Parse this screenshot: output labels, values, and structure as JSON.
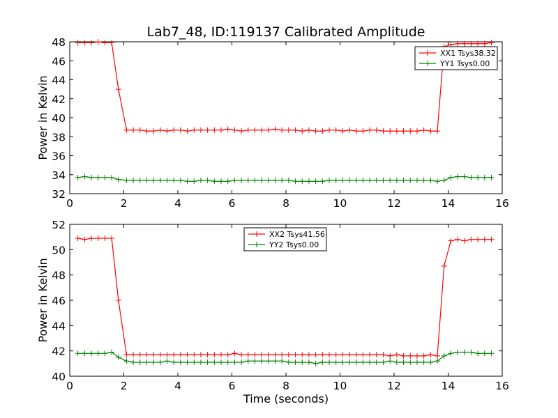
{
  "title": "Lab7_48, ID:119137 Calibrated Amplitude",
  "colors": {
    "red": "#ff0000",
    "green": "#008000",
    "axes": "#000000"
  },
  "chart_data": [
    {
      "type": "line",
      "title": "Lab7_48, ID:119137 Calibrated Amplitude",
      "xlabel": "",
      "ylabel": "Power in Kelvin",
      "xlim": [
        0,
        16
      ],
      "ylim": [
        32,
        48
      ],
      "xticks": [
        0,
        2,
        4,
        6,
        8,
        10,
        12,
        14,
        16
      ],
      "yticks": [
        32,
        34,
        36,
        38,
        40,
        42,
        44,
        46,
        48
      ],
      "grid": false,
      "legend_position": "top-right",
      "marker": "+",
      "x": [
        0.3,
        0.55,
        0.8,
        1.05,
        1.3,
        1.55,
        1.8,
        2.1,
        2.35,
        2.6,
        2.85,
        3.1,
        3.35,
        3.6,
        3.85,
        4.1,
        4.35,
        4.6,
        4.85,
        5.1,
        5.35,
        5.6,
        5.85,
        6.1,
        6.35,
        6.6,
        6.85,
        7.1,
        7.35,
        7.6,
        7.85,
        8.1,
        8.35,
        8.6,
        8.85,
        9.1,
        9.35,
        9.6,
        9.85,
        10.1,
        10.35,
        10.6,
        10.85,
        11.1,
        11.35,
        11.6,
        11.85,
        12.1,
        12.35,
        12.6,
        12.85,
        13.1,
        13.35,
        13.6,
        13.85,
        14.1,
        14.35,
        14.6,
        14.85,
        15.1,
        15.35,
        15.6
      ],
      "series": [
        {
          "name": "XX1 Tsys38.32",
          "color": "#ff0000",
          "values": [
            47.9,
            47.9,
            47.9,
            48.0,
            47.9,
            47.9,
            43.0,
            38.7,
            38.7,
            38.7,
            38.6,
            38.6,
            38.7,
            38.6,
            38.7,
            38.7,
            38.6,
            38.7,
            38.7,
            38.7,
            38.7,
            38.7,
            38.8,
            38.7,
            38.6,
            38.7,
            38.7,
            38.7,
            38.7,
            38.8,
            38.7,
            38.7,
            38.7,
            38.6,
            38.7,
            38.6,
            38.6,
            38.7,
            38.7,
            38.6,
            38.7,
            38.6,
            38.6,
            38.7,
            38.7,
            38.6,
            38.6,
            38.6,
            38.6,
            38.6,
            38.6,
            38.7,
            38.6,
            38.6,
            47.5,
            47.7,
            47.8,
            47.8,
            47.8,
            47.8,
            47.8,
            47.9
          ]
        },
        {
          "name": "YY1 Tsys0.00",
          "color": "#008000",
          "values": [
            33.7,
            33.8,
            33.7,
            33.7,
            33.7,
            33.7,
            33.5,
            33.4,
            33.4,
            33.4,
            33.4,
            33.4,
            33.4,
            33.4,
            33.4,
            33.4,
            33.3,
            33.3,
            33.4,
            33.4,
            33.3,
            33.3,
            33.3,
            33.4,
            33.4,
            33.4,
            33.4,
            33.4,
            33.4,
            33.4,
            33.4,
            33.4,
            33.3,
            33.3,
            33.3,
            33.3,
            33.3,
            33.4,
            33.4,
            33.4,
            33.4,
            33.4,
            33.4,
            33.4,
            33.4,
            33.4,
            33.4,
            33.4,
            33.4,
            33.4,
            33.4,
            33.4,
            33.4,
            33.3,
            33.4,
            33.7,
            33.8,
            33.8,
            33.7,
            33.7,
            33.7,
            33.7
          ]
        }
      ]
    },
    {
      "type": "line",
      "title": "",
      "xlabel": "Time (seconds)",
      "ylabel": "Power in Kelvin",
      "xlim": [
        0,
        16
      ],
      "ylim": [
        40,
        52
      ],
      "xticks": [
        0,
        2,
        4,
        6,
        8,
        10,
        12,
        14,
        16
      ],
      "yticks": [
        40,
        42,
        44,
        46,
        48,
        50,
        52
      ],
      "grid": false,
      "legend_position": "top-center",
      "marker": "+",
      "x": [
        0.3,
        0.55,
        0.8,
        1.05,
        1.3,
        1.55,
        1.8,
        2.1,
        2.35,
        2.6,
        2.85,
        3.1,
        3.35,
        3.6,
        3.85,
        4.1,
        4.35,
        4.6,
        4.85,
        5.1,
        5.35,
        5.6,
        5.85,
        6.1,
        6.35,
        6.6,
        6.85,
        7.1,
        7.35,
        7.6,
        7.85,
        8.1,
        8.35,
        8.6,
        8.85,
        9.1,
        9.35,
        9.6,
        9.85,
        10.1,
        10.35,
        10.6,
        10.85,
        11.1,
        11.35,
        11.6,
        11.85,
        12.1,
        12.35,
        12.6,
        12.85,
        13.1,
        13.35,
        13.6,
        13.85,
        14.1,
        14.35,
        14.6,
        14.85,
        15.1,
        15.35,
        15.6
      ],
      "series": [
        {
          "name": "XX2 Tsys41.56",
          "color": "#ff0000",
          "values": [
            50.9,
            50.8,
            50.9,
            50.9,
            50.9,
            50.9,
            46.0,
            41.7,
            41.7,
            41.7,
            41.7,
            41.7,
            41.7,
            41.7,
            41.7,
            41.7,
            41.7,
            41.7,
            41.7,
            41.7,
            41.7,
            41.7,
            41.7,
            41.8,
            41.7,
            41.7,
            41.7,
            41.7,
            41.7,
            41.7,
            41.7,
            41.7,
            41.7,
            41.7,
            41.7,
            41.7,
            41.7,
            41.7,
            41.7,
            41.7,
            41.7,
            41.7,
            41.7,
            41.7,
            41.7,
            41.7,
            41.6,
            41.7,
            41.6,
            41.6,
            41.6,
            41.6,
            41.7,
            41.6,
            48.7,
            50.7,
            50.8,
            50.7,
            50.8,
            50.8,
            50.8,
            50.8
          ]
        },
        {
          "name": "YY2 Tsys0.00",
          "color": "#008000",
          "values": [
            41.8,
            41.8,
            41.8,
            41.8,
            41.8,
            41.9,
            41.5,
            41.2,
            41.1,
            41.1,
            41.1,
            41.1,
            41.1,
            41.2,
            41.1,
            41.1,
            41.1,
            41.1,
            41.1,
            41.1,
            41.1,
            41.1,
            41.1,
            41.1,
            41.1,
            41.2,
            41.2,
            41.2,
            41.2,
            41.2,
            41.2,
            41.1,
            41.1,
            41.1,
            41.1,
            41.0,
            41.1,
            41.1,
            41.1,
            41.1,
            41.1,
            41.1,
            41.1,
            41.1,
            41.1,
            41.1,
            41.2,
            41.1,
            41.1,
            41.1,
            41.1,
            41.1,
            41.1,
            41.2,
            41.6,
            41.8,
            41.9,
            41.9,
            41.9,
            41.8,
            41.8,
            41.8
          ]
        }
      ]
    }
  ]
}
